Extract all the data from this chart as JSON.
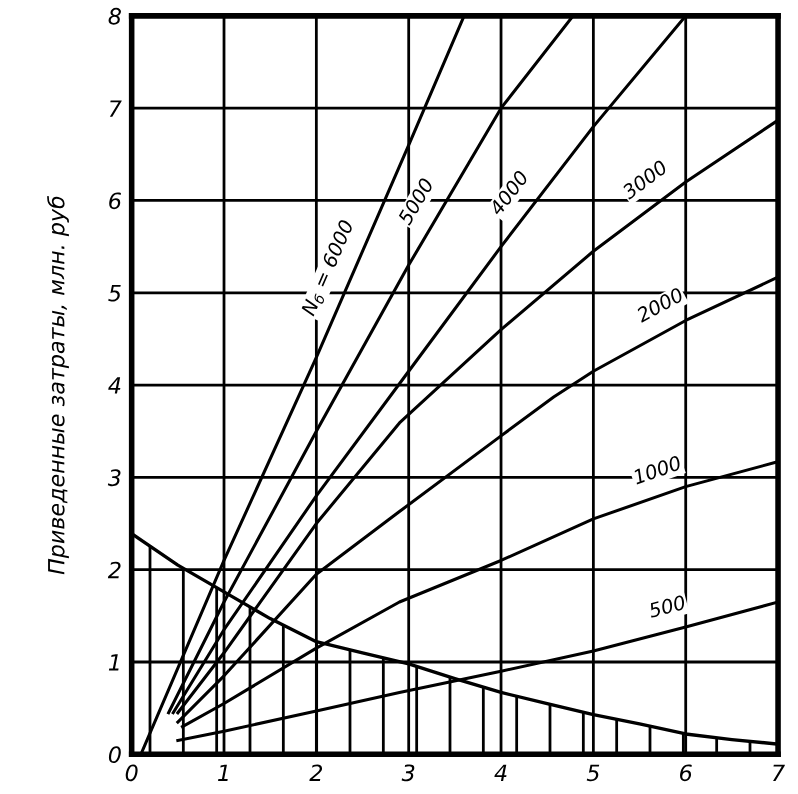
{
  "chart_data": {
    "type": "line",
    "ylabel": "Приведенные затраты, млн. руб",
    "xlim": [
      0,
      7
    ],
    "ylim": [
      0,
      8
    ],
    "xticks": [
      0,
      1,
      2,
      3,
      4,
      5,
      6,
      7
    ],
    "yticks": [
      0,
      1,
      2,
      3,
      4,
      5,
      6,
      7,
      8
    ],
    "grid": true,
    "legend": false,
    "marker": "none",
    "line_style": "solid",
    "series": [
      {
        "name": "N$_{б}$ = 6000",
        "color": "#000000",
        "x": [
          0.1,
          1,
          2,
          3,
          3.6
        ],
        "values": [
          0,
          2.1,
          4.3,
          6.6,
          8
        ]
      },
      {
        "name": "5000",
        "color": "#000000",
        "x": [
          0.4,
          1,
          2,
          3,
          4,
          4.78
        ],
        "values": [
          0.45,
          1.65,
          3.5,
          5.3,
          7.0,
          8
        ]
      },
      {
        "name": "4000",
        "color": "#000000",
        "x": [
          0.45,
          1,
          2,
          3,
          4,
          5,
          6
        ],
        "values": [
          0.45,
          1.35,
          2.8,
          4.15,
          5.5,
          6.8,
          8
        ]
      },
      {
        "name": "3000",
        "color": "#000000",
        "x": [
          0.5,
          1,
          2,
          2.9,
          4,
          5,
          6,
          7
        ],
        "values": [
          0.45,
          1.1,
          2.5,
          3.59,
          4.6,
          5.45,
          6.2,
          6.87
        ]
      },
      {
        "name": "2000",
        "color": "#000000",
        "x": [
          0.5,
          1,
          2,
          2.9,
          4,
          4.57,
          5,
          6,
          7
        ],
        "values": [
          0.35,
          0.85,
          1.95,
          2.63,
          3.45,
          3.87,
          4.15,
          4.7,
          5.17
        ]
      },
      {
        "name": "1000",
        "color": "#000000",
        "x": [
          0.55,
          1,
          2,
          2.9,
          4,
          5,
          6,
          7
        ],
        "values": [
          0.3,
          0.55,
          1.15,
          1.65,
          2.1,
          2.55,
          2.9,
          3.17
        ]
      },
      {
        "name": "500",
        "color": "#000000",
        "x": [
          0.5,
          1,
          2,
          2.9,
          4,
          5,
          6,
          7
        ],
        "values": [
          0.15,
          0.25,
          0.47,
          0.67,
          0.9,
          1.12,
          1.38,
          1.65
        ]
      },
      {
        "type": "area",
        "color": "#000000",
        "x": [
          0,
          0.5,
          1,
          1.5,
          2,
          2.5,
          3,
          3.5,
          4,
          4.5,
          5,
          5.5,
          6,
          6.5,
          7
        ],
        "values": [
          2.39,
          2.05,
          1.76,
          1.47,
          1.22,
          1.1,
          0.98,
          0.82,
          0.67,
          0.55,
          0.43,
          0.33,
          0.22,
          0.16,
          0.11
        ]
      }
    ]
  }
}
